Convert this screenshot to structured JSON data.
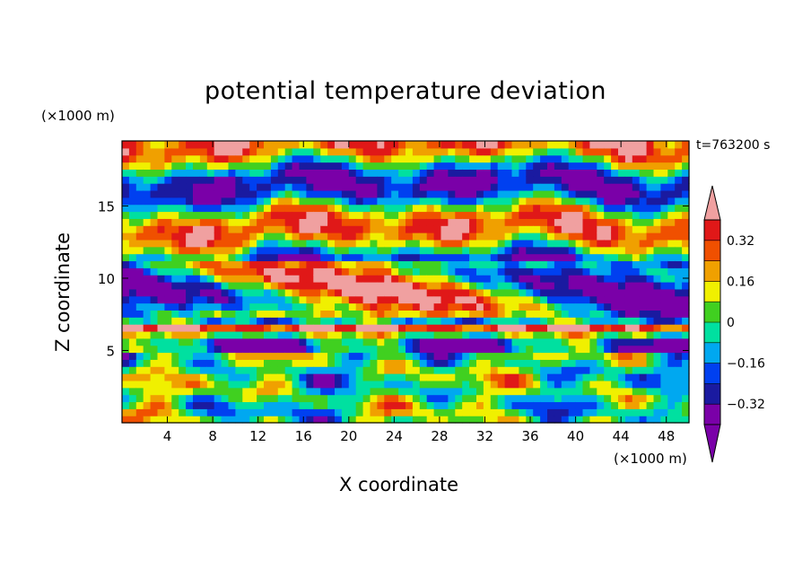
{
  "title": "potential temperature deviation",
  "z_unit_label": "(×1000 m)",
  "x_unit_label": "(×1000 m)",
  "time_label": "t=763200 s",
  "chart_data": {
    "type": "heatmap",
    "title": "potential temperature deviation",
    "xlabel": "X coordinate",
    "ylabel": "Z coordinate",
    "x_unit": "(×1000 m)",
    "y_unit": "(×1000 m)",
    "xlim": [
      0,
      50
    ],
    "ylim": [
      0,
      19.5
    ],
    "x_ticks": [
      4,
      8,
      12,
      16,
      20,
      24,
      28,
      32,
      36,
      40,
      44,
      48
    ],
    "y_ticks": [
      5,
      10,
      15
    ],
    "annotation": "t=763200 s",
    "colorbar": {
      "levels": [
        -0.4,
        -0.32,
        -0.24,
        -0.16,
        -0.08,
        0,
        0.08,
        0.16,
        0.24,
        0.32,
        0.4
      ],
      "tick_labels": [
        "0.32",
        "0.16",
        "0",
        "−0.16",
        "−0.32"
      ],
      "tick_values": [
        0.32,
        0.16,
        0,
        -0.16,
        -0.32
      ],
      "colors": [
        "#7a00a8",
        "#1a1aa0",
        "#0040f0",
        "#00a8f0",
        "#00e0a0",
        "#40d020",
        "#f0f000",
        "#f0a000",
        "#f05000",
        "#e01818",
        "#f0a0a0"
      ],
      "extend": "both"
    }
  }
}
